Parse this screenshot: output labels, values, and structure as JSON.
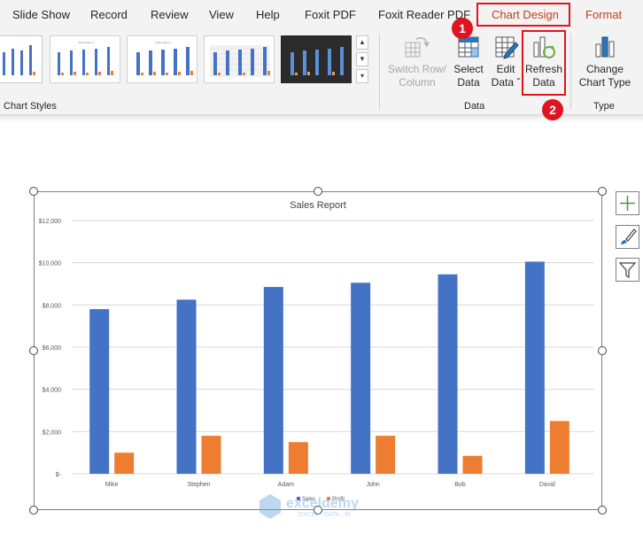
{
  "tabs": [
    {
      "label": "Slide Show"
    },
    {
      "label": "Record"
    },
    {
      "label": "Review"
    },
    {
      "label": "View"
    },
    {
      "label": "Help"
    },
    {
      "label": "Foxit PDF"
    },
    {
      "label": "Foxit Reader PDF"
    },
    {
      "label": "Chart Design"
    },
    {
      "label": "Format"
    }
  ],
  "ribbon": {
    "chart_styles_label": "Chart Styles",
    "data_group_label": "Data",
    "type_group_label": "Type",
    "buttons": {
      "switch_row_column": {
        "line1": "Switch Row/",
        "line2": "Column"
      },
      "select_data": {
        "line1": "Select",
        "line2": "Data"
      },
      "edit_data": {
        "line1": "Edit",
        "line2": "Data ˇ"
      },
      "refresh_data": {
        "line1": "Refresh",
        "line2": "Data"
      },
      "change_chart_type": {
        "line1": "Change",
        "line2": "Chart Type"
      }
    }
  },
  "badges": {
    "one": "1",
    "two": "2"
  },
  "icons": [
    "switch-row-column-icon",
    "select-data-icon",
    "edit-data-icon",
    "refresh-data-icon",
    "change-chart-type-icon",
    "add-chart-element-icon",
    "chart-styles-brush-icon",
    "chart-filter-icon"
  ],
  "colors": {
    "sales": "#4472c4",
    "profit": "#ed7d31",
    "highlight": "#e0141e",
    "active_tab": "#c43e1c"
  },
  "watermark": {
    "brand": "exceldemy",
    "tagline": "EXCEL · DATA · BI"
  },
  "chart_data": {
    "type": "bar",
    "title": "Sales Report",
    "categories": [
      "Mike",
      "Stephen",
      "Adam",
      "John",
      "Bob",
      "David"
    ],
    "series": [
      {
        "name": "Sales",
        "values": [
          7800,
          8250,
          8850,
          9050,
          9450,
          10050
        ]
      },
      {
        "name": "Profit",
        "values": [
          1000,
          1800,
          1500,
          1800,
          850,
          2500
        ]
      }
    ],
    "ylim": [
      0,
      12000
    ],
    "yticks": [
      {
        "value": 12000,
        "label": "$12,000"
      },
      {
        "value": 10000,
        "label": "$10,000"
      },
      {
        "value": 8000,
        "label": "$8,000"
      },
      {
        "value": 6000,
        "label": "$6,000"
      },
      {
        "value": 4000,
        "label": "$4,000"
      },
      {
        "value": 2000,
        "label": "$2,000"
      },
      {
        "value": 0,
        "label": "$-"
      }
    ],
    "grid": true,
    "legend": "bottom"
  }
}
